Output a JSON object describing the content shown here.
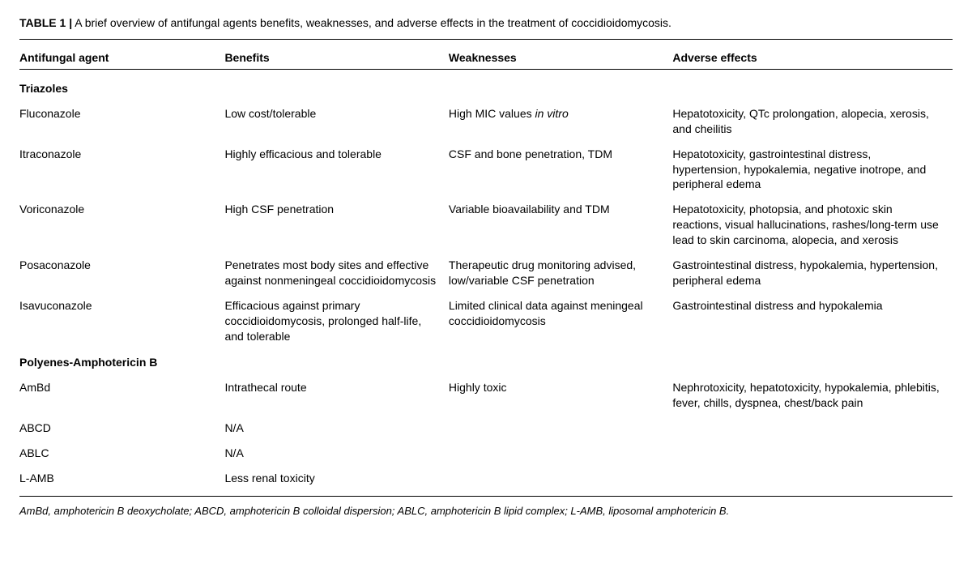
{
  "caption": {
    "label": "TABLE 1 |",
    "text": "A brief overview of antifungal agents benefits, weaknesses, and adverse effects in the treatment of coccidioidomycosis."
  },
  "columns": [
    "Antifungal agent",
    "Benefits",
    "Weaknesses",
    "Adverse effects"
  ],
  "sections": [
    {
      "title": "Triazoles",
      "rows": [
        {
          "agent": "Fluconazole",
          "benefits": "Low cost/tolerable",
          "weaknesses_pre": "High MIC values ",
          "weaknesses_italic": "in vitro",
          "adverse": "Hepatotoxicity, QTc prolongation, alopecia, xerosis, and cheilitis"
        },
        {
          "agent": "Itraconazole",
          "benefits": "Highly efficacious and tolerable",
          "weaknesses": "CSF and bone penetration, TDM",
          "adverse": "Hepatotoxicity, gastrointestinal distress, hypertension, hypokalemia, negative inotrope, and peripheral edema"
        },
        {
          "agent": "Voriconazole",
          "benefits": "High CSF penetration",
          "weaknesses": "Variable bioavailability and TDM",
          "adverse": "Hepatotoxicity, photopsia, and photoxic skin reactions, visual hallucinations, rashes/long-term use lead to skin carcinoma, alopecia, and xerosis"
        },
        {
          "agent": "Posaconazole",
          "benefits": "Penetrates most body sites and effective against nonmeningeal coccidioidomycosis",
          "weaknesses": "Therapeutic drug monitoring advised, low/variable CSF penetration",
          "adverse": "Gastrointestinal distress, hypokalemia, hypertension, peripheral edema"
        },
        {
          "agent": "Isavuconazole",
          "benefits": "Efficacious against primary coccidioidomycosis, prolonged half-life, and tolerable",
          "weaknesses": "Limited clinical data against meningeal coccidioidomycosis",
          "adverse": "Gastrointestinal distress and hypokalemia"
        }
      ]
    },
    {
      "title": "Polyenes-Amphotericin B",
      "rows": [
        {
          "agent": "AmBd",
          "benefits": "Intrathecal route",
          "weaknesses": "Highly toxic",
          "adverse": "Nephrotoxicity, hepatotoxicity, hypokalemia, phlebitis, fever, chills, dyspnea, chest/back pain"
        },
        {
          "agent": "ABCD",
          "benefits": "N/A",
          "weaknesses": "",
          "adverse": ""
        },
        {
          "agent": "ABLC",
          "benefits": "N/A",
          "weaknesses": "",
          "adverse": ""
        },
        {
          "agent": "L-AMB",
          "benefits": "Less renal toxicity",
          "weaknesses": "",
          "adverse": ""
        }
      ]
    }
  ],
  "footnote": "AmBd, amphotericin B deoxycholate; ABCD, amphotericin B colloidal dispersion; ABLC, amphotericin B lipid complex; L-AMB, liposomal amphotericin B."
}
